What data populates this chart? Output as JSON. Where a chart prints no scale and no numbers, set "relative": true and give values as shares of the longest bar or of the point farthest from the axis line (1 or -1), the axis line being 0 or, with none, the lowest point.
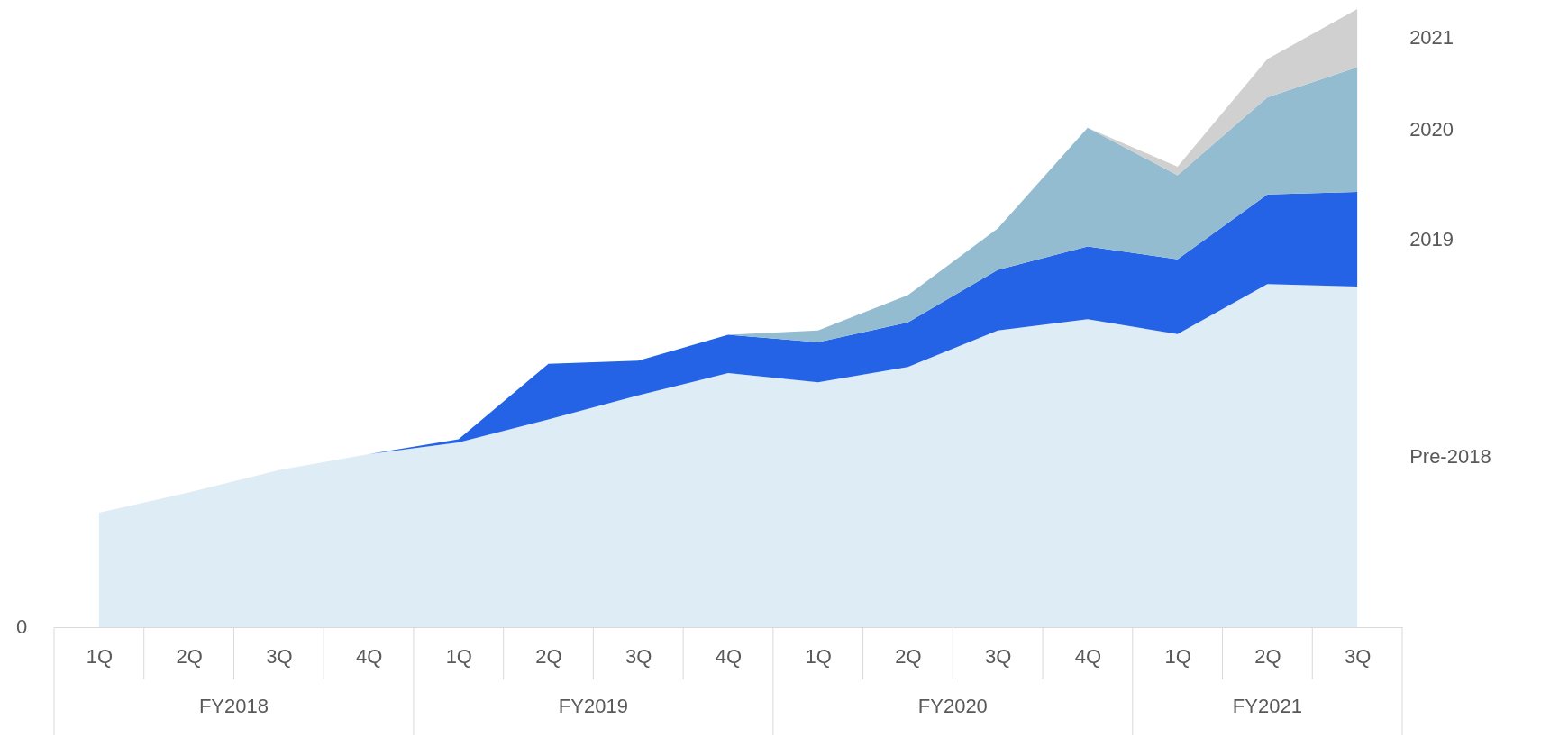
{
  "chart_data": {
    "type": "area",
    "stacked": true,
    "relative": true,
    "legend": "right",
    "categories": [
      "1Q",
      "2Q",
      "3Q",
      "4Q",
      "1Q",
      "2Q",
      "3Q",
      "4Q",
      "1Q",
      "2Q",
      "3Q",
      "4Q",
      "1Q",
      "2Q",
      "3Q"
    ],
    "annotations": [
      "FY2018",
      "FY2019",
      "FY2020",
      "FY2021",
      "0"
    ],
    "series": [
      {
        "name": "Pre-2018",
        "color": "#deecf6",
        "values": [
          0.185,
          0.218,
          0.254,
          0.28,
          0.299,
          0.336,
          0.375,
          0.411,
          0.396,
          0.421,
          0.48,
          0.498,
          0.474,
          0.555,
          0.551
        ]
      },
      {
        "name": "2019",
        "color": "#2563e6",
        "values": [
          0,
          0,
          0,
          0,
          0.005,
          0.09,
          0.056,
          0.062,
          0.065,
          0.072,
          0.098,
          0.118,
          0.121,
          0.145,
          0.153
        ]
      },
      {
        "name": "2020",
        "color": "#94bcd0",
        "values": [
          0,
          0,
          0,
          0,
          0,
          0,
          0,
          0,
          0.019,
          0.044,
          0.067,
          0.192,
          0.136,
          0.157,
          0.202
        ]
      },
      {
        "name": "2021",
        "color": "#d0d0d0",
        "values": [
          0,
          0,
          0,
          0,
          0,
          0,
          0,
          0,
          0,
          0,
          0,
          0,
          0.014,
          0.062,
          0.094
        ]
      }
    ]
  }
}
